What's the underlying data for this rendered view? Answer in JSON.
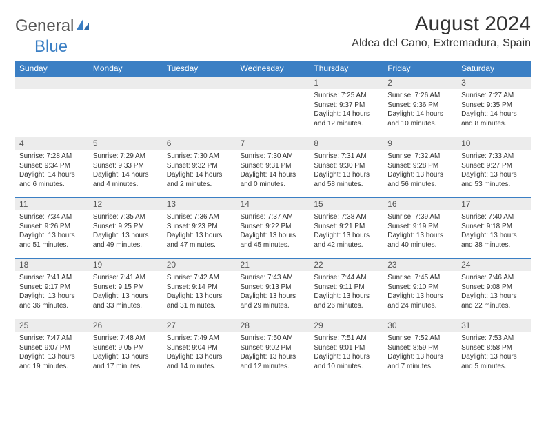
{
  "logo": {
    "word1": "General",
    "word2": "Blue"
  },
  "title": "August 2024",
  "location": "Aldea del Cano, Extremadura, Spain",
  "colors": {
    "header_bg": "#3b7fc4",
    "header_fg": "#ffffff",
    "daynum_bg": "#ececec",
    "daynum_fg": "#555555",
    "text": "#333333",
    "border": "#3b7fc4",
    "page_bg": "#ffffff"
  },
  "fonts": {
    "title_size_pt": 30,
    "location_size_pt": 16,
    "day_header_pt": 12,
    "daynum_pt": 12,
    "body_pt": 10
  },
  "day_headers": [
    "Sunday",
    "Monday",
    "Tuesday",
    "Wednesday",
    "Thursday",
    "Friday",
    "Saturday"
  ],
  "weeks": [
    [
      {
        "n": "",
        "sr": "",
        "ss": "",
        "dl": ""
      },
      {
        "n": "",
        "sr": "",
        "ss": "",
        "dl": ""
      },
      {
        "n": "",
        "sr": "",
        "ss": "",
        "dl": ""
      },
      {
        "n": "",
        "sr": "",
        "ss": "",
        "dl": ""
      },
      {
        "n": "1",
        "sr": "Sunrise: 7:25 AM",
        "ss": "Sunset: 9:37 PM",
        "dl": "Daylight: 14 hours and 12 minutes."
      },
      {
        "n": "2",
        "sr": "Sunrise: 7:26 AM",
        "ss": "Sunset: 9:36 PM",
        "dl": "Daylight: 14 hours and 10 minutes."
      },
      {
        "n": "3",
        "sr": "Sunrise: 7:27 AM",
        "ss": "Sunset: 9:35 PM",
        "dl": "Daylight: 14 hours and 8 minutes."
      }
    ],
    [
      {
        "n": "4",
        "sr": "Sunrise: 7:28 AM",
        "ss": "Sunset: 9:34 PM",
        "dl": "Daylight: 14 hours and 6 minutes."
      },
      {
        "n": "5",
        "sr": "Sunrise: 7:29 AM",
        "ss": "Sunset: 9:33 PM",
        "dl": "Daylight: 14 hours and 4 minutes."
      },
      {
        "n": "6",
        "sr": "Sunrise: 7:30 AM",
        "ss": "Sunset: 9:32 PM",
        "dl": "Daylight: 14 hours and 2 minutes."
      },
      {
        "n": "7",
        "sr": "Sunrise: 7:30 AM",
        "ss": "Sunset: 9:31 PM",
        "dl": "Daylight: 14 hours and 0 minutes."
      },
      {
        "n": "8",
        "sr": "Sunrise: 7:31 AM",
        "ss": "Sunset: 9:30 PM",
        "dl": "Daylight: 13 hours and 58 minutes."
      },
      {
        "n": "9",
        "sr": "Sunrise: 7:32 AM",
        "ss": "Sunset: 9:28 PM",
        "dl": "Daylight: 13 hours and 56 minutes."
      },
      {
        "n": "10",
        "sr": "Sunrise: 7:33 AM",
        "ss": "Sunset: 9:27 PM",
        "dl": "Daylight: 13 hours and 53 minutes."
      }
    ],
    [
      {
        "n": "11",
        "sr": "Sunrise: 7:34 AM",
        "ss": "Sunset: 9:26 PM",
        "dl": "Daylight: 13 hours and 51 minutes."
      },
      {
        "n": "12",
        "sr": "Sunrise: 7:35 AM",
        "ss": "Sunset: 9:25 PM",
        "dl": "Daylight: 13 hours and 49 minutes."
      },
      {
        "n": "13",
        "sr": "Sunrise: 7:36 AM",
        "ss": "Sunset: 9:23 PM",
        "dl": "Daylight: 13 hours and 47 minutes."
      },
      {
        "n": "14",
        "sr": "Sunrise: 7:37 AM",
        "ss": "Sunset: 9:22 PM",
        "dl": "Daylight: 13 hours and 45 minutes."
      },
      {
        "n": "15",
        "sr": "Sunrise: 7:38 AM",
        "ss": "Sunset: 9:21 PM",
        "dl": "Daylight: 13 hours and 42 minutes."
      },
      {
        "n": "16",
        "sr": "Sunrise: 7:39 AM",
        "ss": "Sunset: 9:19 PM",
        "dl": "Daylight: 13 hours and 40 minutes."
      },
      {
        "n": "17",
        "sr": "Sunrise: 7:40 AM",
        "ss": "Sunset: 9:18 PM",
        "dl": "Daylight: 13 hours and 38 minutes."
      }
    ],
    [
      {
        "n": "18",
        "sr": "Sunrise: 7:41 AM",
        "ss": "Sunset: 9:17 PM",
        "dl": "Daylight: 13 hours and 36 minutes."
      },
      {
        "n": "19",
        "sr": "Sunrise: 7:41 AM",
        "ss": "Sunset: 9:15 PM",
        "dl": "Daylight: 13 hours and 33 minutes."
      },
      {
        "n": "20",
        "sr": "Sunrise: 7:42 AM",
        "ss": "Sunset: 9:14 PM",
        "dl": "Daylight: 13 hours and 31 minutes."
      },
      {
        "n": "21",
        "sr": "Sunrise: 7:43 AM",
        "ss": "Sunset: 9:13 PM",
        "dl": "Daylight: 13 hours and 29 minutes."
      },
      {
        "n": "22",
        "sr": "Sunrise: 7:44 AM",
        "ss": "Sunset: 9:11 PM",
        "dl": "Daylight: 13 hours and 26 minutes."
      },
      {
        "n": "23",
        "sr": "Sunrise: 7:45 AM",
        "ss": "Sunset: 9:10 PM",
        "dl": "Daylight: 13 hours and 24 minutes."
      },
      {
        "n": "24",
        "sr": "Sunrise: 7:46 AM",
        "ss": "Sunset: 9:08 PM",
        "dl": "Daylight: 13 hours and 22 minutes."
      }
    ],
    [
      {
        "n": "25",
        "sr": "Sunrise: 7:47 AM",
        "ss": "Sunset: 9:07 PM",
        "dl": "Daylight: 13 hours and 19 minutes."
      },
      {
        "n": "26",
        "sr": "Sunrise: 7:48 AM",
        "ss": "Sunset: 9:05 PM",
        "dl": "Daylight: 13 hours and 17 minutes."
      },
      {
        "n": "27",
        "sr": "Sunrise: 7:49 AM",
        "ss": "Sunset: 9:04 PM",
        "dl": "Daylight: 13 hours and 14 minutes."
      },
      {
        "n": "28",
        "sr": "Sunrise: 7:50 AM",
        "ss": "Sunset: 9:02 PM",
        "dl": "Daylight: 13 hours and 12 minutes."
      },
      {
        "n": "29",
        "sr": "Sunrise: 7:51 AM",
        "ss": "Sunset: 9:01 PM",
        "dl": "Daylight: 13 hours and 10 minutes."
      },
      {
        "n": "30",
        "sr": "Sunrise: 7:52 AM",
        "ss": "Sunset: 8:59 PM",
        "dl": "Daylight: 13 hours and 7 minutes."
      },
      {
        "n": "31",
        "sr": "Sunrise: 7:53 AM",
        "ss": "Sunset: 8:58 PM",
        "dl": "Daylight: 13 hours and 5 minutes."
      }
    ]
  ]
}
